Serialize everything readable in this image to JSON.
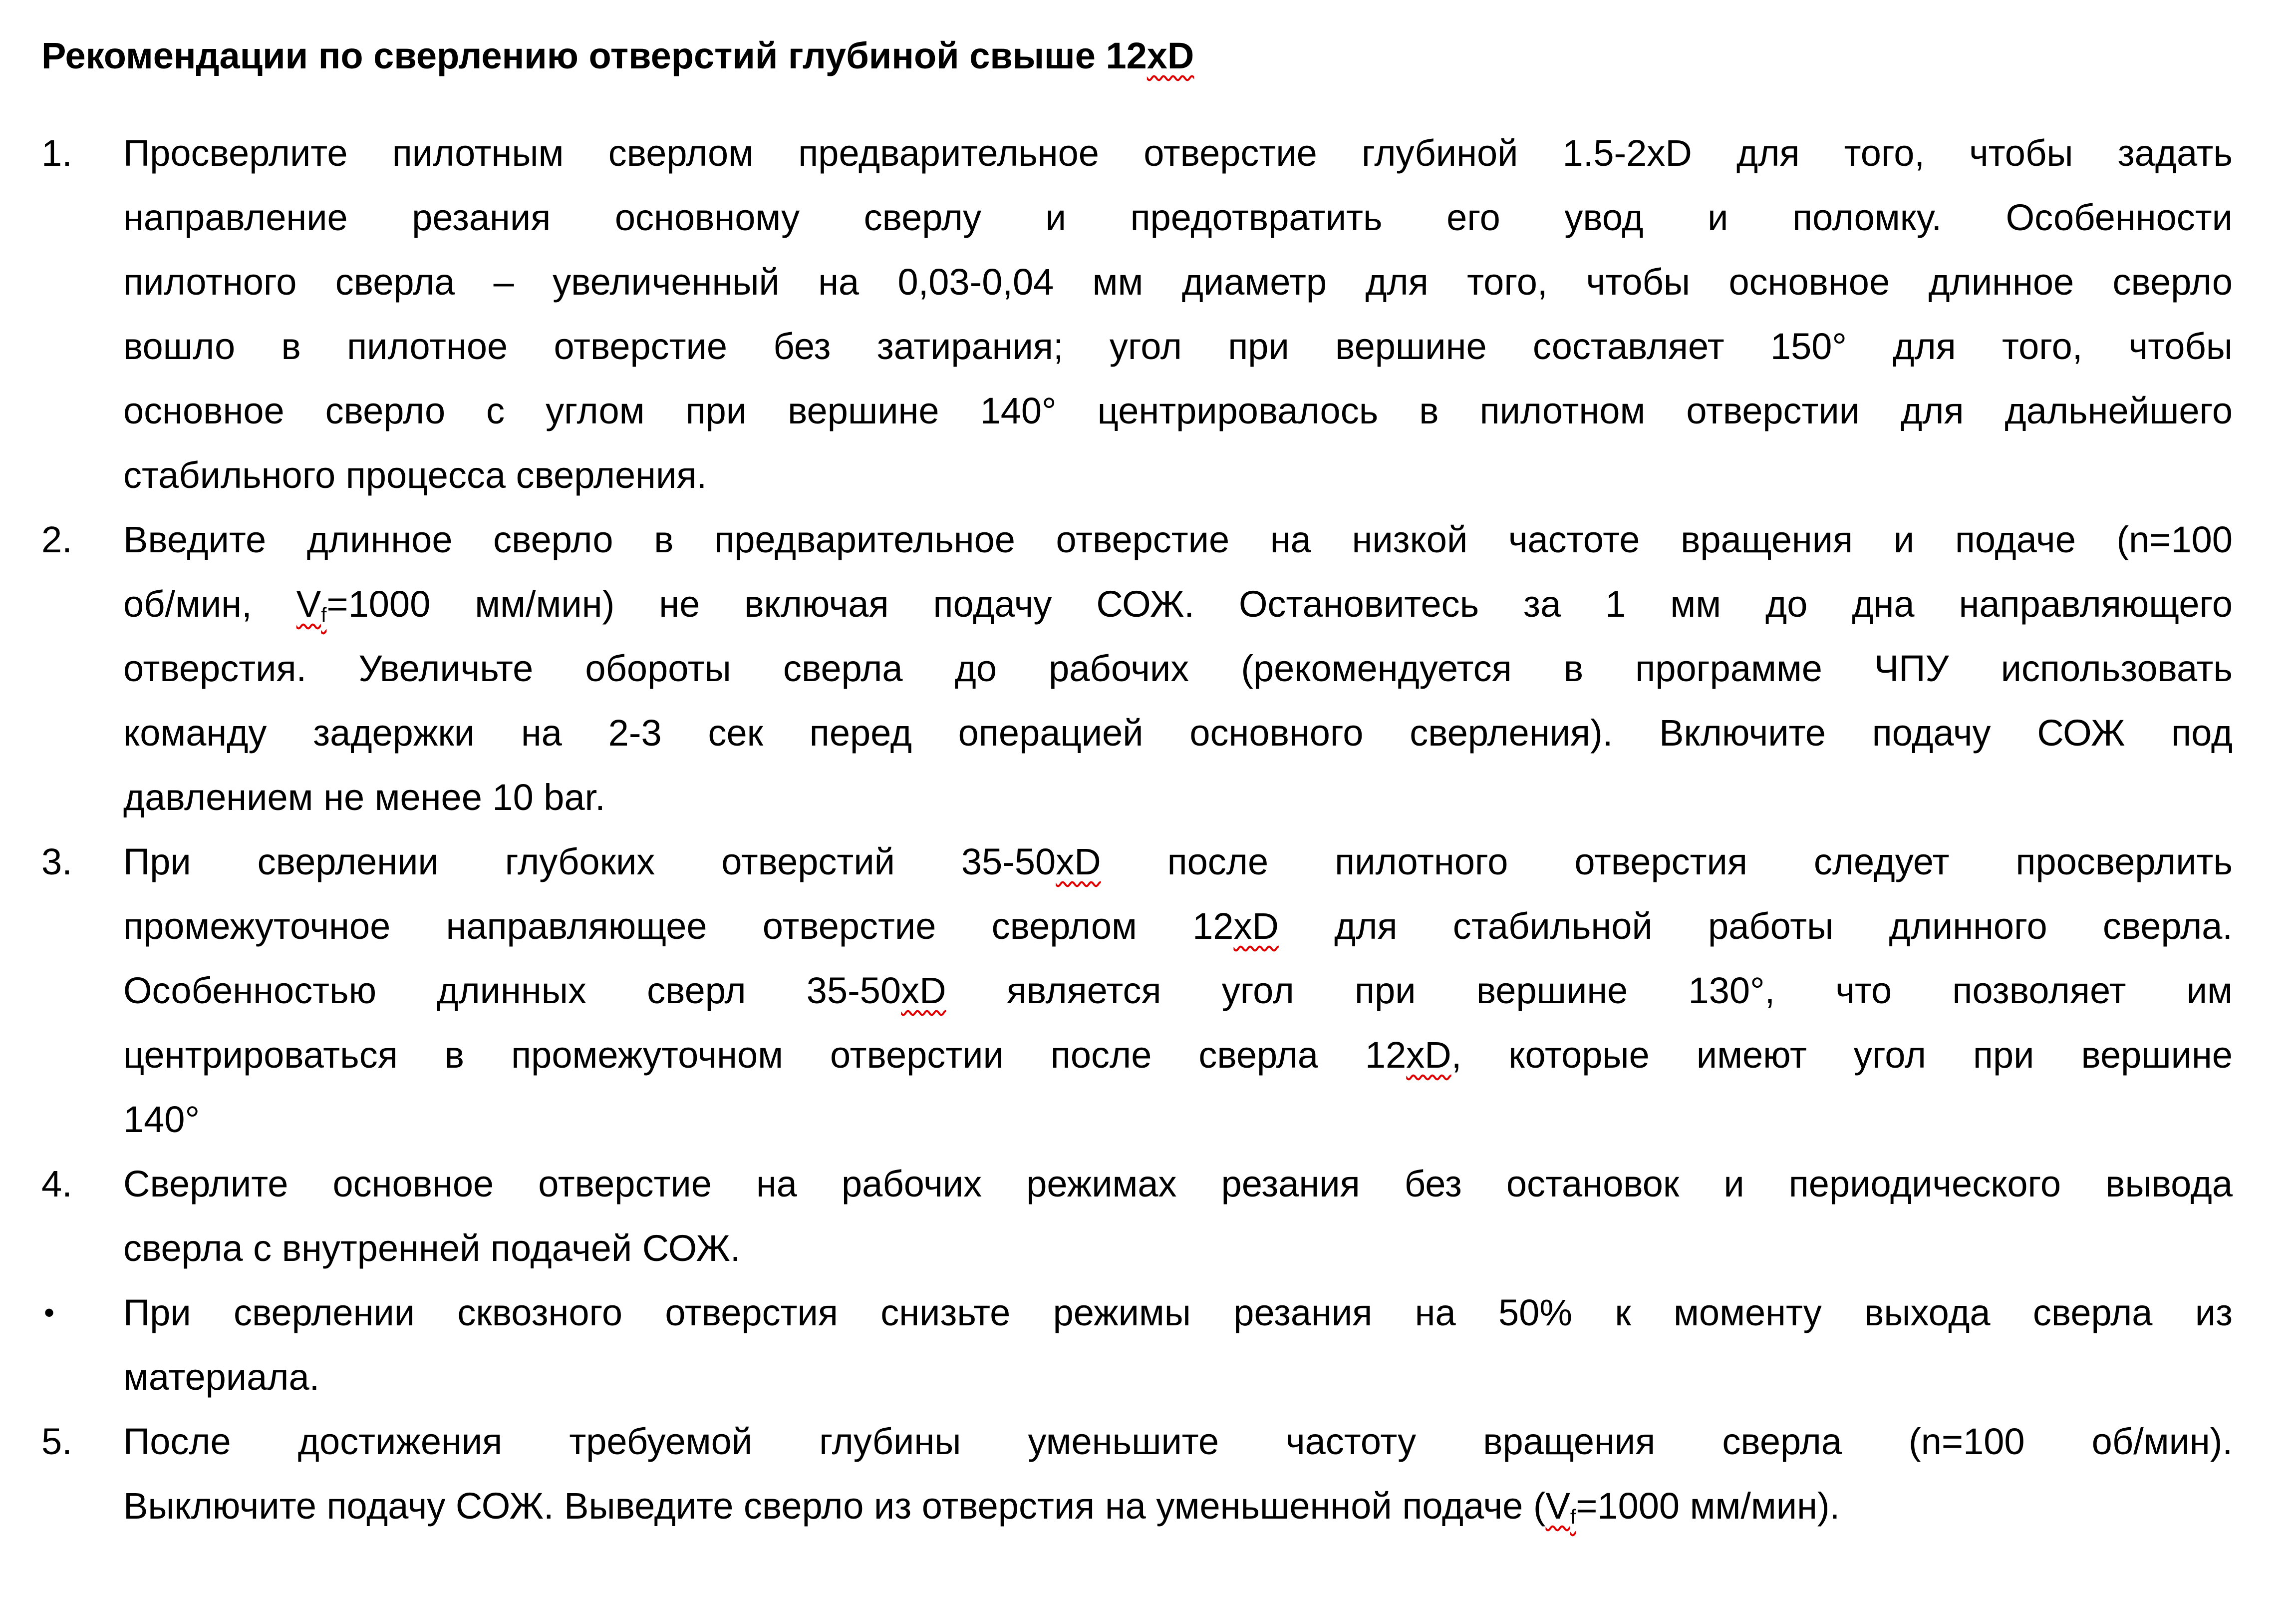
{
  "document": {
    "title": [
      {
        "t": "Рекомендации по сверлению отверстий глубиной свыше 12"
      },
      {
        "t": "xD",
        "err": true
      }
    ],
    "items": [
      {
        "marker": "1.",
        "lines": [
          [
            {
              "t": "Просверлите пилотным сверлом предварительное отверстие глубиной 1.5-2xD для того, чтобы задать"
            }
          ],
          [
            {
              "t": "направление резания основному сверлу и предотвратить его увод и поломку. Особенности"
            }
          ],
          [
            {
              "t": "пилотного сверла – увеличенный на 0,03-0,04 мм диаметр для того, чтобы основное длинное сверло"
            }
          ],
          [
            {
              "t": "вошло в пилотное отверстие без затирания; угол при вершине составляет 150° для того, чтобы"
            }
          ],
          [
            {
              "t": "основное сверло с углом при вершине 140° центрировалось в пилотном отверстии для дальнейшего"
            }
          ],
          [
            {
              "t": "стабильного процесса сверления."
            }
          ]
        ]
      },
      {
        "marker": "2.",
        "lines": [
          [
            {
              "t": "Введите длинное сверло в предварительное отверстие на низкой частоте вращения и подаче (n=100"
            }
          ],
          [
            {
              "t": "об/мин, "
            },
            {
              "t": "V",
              "err": true
            },
            {
              "t": "f",
              "sub": true,
              "err": true
            },
            {
              "t": "=1000 мм/мин) не включая подачу СОЖ. Остановитесь за 1 мм до дна направляющего"
            }
          ],
          [
            {
              "t": "отверстия. Увеличьте обороты сверла до рабочих (рекомендуется в программе ЧПУ использовать"
            }
          ],
          [
            {
              "t": "команду задержки на 2-3 сек перед операцией основного сверления). Включите подачу СОЖ под"
            }
          ],
          [
            {
              "t": "давлением не менее 10 bar."
            }
          ]
        ]
      },
      {
        "marker": "3.",
        "lines": [
          [
            {
              "t": "При сверлении глубоких отверстий 35-50"
            },
            {
              "t": "xD",
              "err": true
            },
            {
              "t": " после пилотного отверстия следует просверлить"
            }
          ],
          [
            {
              "t": "промежуточное направляющее отверстие сверлом 12"
            },
            {
              "t": "xD",
              "err": true
            },
            {
              "t": " для стабильной работы длинного сверла."
            }
          ],
          [
            {
              "t": "Особенностью длинных сверл 35-50"
            },
            {
              "t": "xD",
              "err": true
            },
            {
              "t": " является угол при вершине 130°, что позволяет им"
            }
          ],
          [
            {
              "t": "центрироваться в промежуточном отверстии после сверла 12"
            },
            {
              "t": "xD",
              "err": true
            },
            {
              "t": ", которые имеют угол при вершине"
            }
          ],
          [
            {
              "t": "140°"
            }
          ]
        ]
      },
      {
        "marker": "4.",
        "lines": [
          [
            {
              "t": "Сверлите основное отверстие на рабочих режимах резания без остановок и периодического вывода"
            }
          ],
          [
            {
              "t": "сверла с внутренней подачей СОЖ."
            }
          ]
        ]
      },
      {
        "marker": "•",
        "bullet": true,
        "lines": [
          [
            {
              "t": "При сверлении сквозного отверстия снизьте режимы резания на 50% к моменту выхода сверла из"
            }
          ],
          [
            {
              "t": "материала."
            }
          ]
        ]
      },
      {
        "marker": "5.",
        "lines": [
          [
            {
              "t": "После достижения требуемой глубины уменьшите частоту вращения сверла (n=100 об/мин)."
            }
          ],
          [
            {
              "t": "Выключите подачу СОЖ. Выведите сверло из отверстия на уменьшенной подаче ("
            },
            {
              "t": "V",
              "err": true
            },
            {
              "t": "f",
              "sub": true,
              "err": true
            },
            {
              "t": "=1000 мм/мин)."
            }
          ]
        ]
      }
    ]
  },
  "colors": {
    "text": "#000000",
    "spellcheck_underline": "#e00000",
    "background": "#ffffff"
  }
}
